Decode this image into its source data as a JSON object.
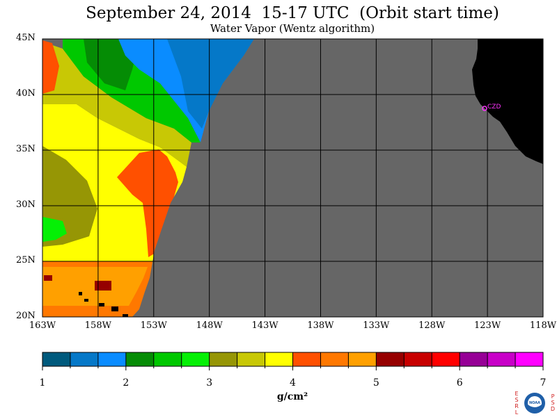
{
  "header": {
    "title": "September 24, 2014  15-17 UTC  (Orbit start time)",
    "subtitle": "Water Vapor (Wentz algorithm)"
  },
  "map": {
    "latitude_labels": [
      "45N",
      "40N",
      "35N",
      "30N",
      "25N",
      "20N"
    ],
    "longitude_labels": [
      "163W",
      "158W",
      "153W",
      "148W",
      "143W",
      "138W",
      "133W",
      "128W",
      "123W",
      "118W"
    ],
    "lon_range": [
      -163,
      -118
    ],
    "lat_range": [
      20,
      45
    ],
    "station_label": "CZD",
    "colors": {
      "no_data": "#666666",
      "land": "#000000",
      "grid": "#000000",
      "station": "#ff33ff"
    }
  },
  "colorbar": {
    "tick_labels": [
      "1",
      "2",
      "3",
      "4",
      "5",
      "6",
      "7"
    ],
    "unit": "g/cm²",
    "range": [
      1,
      7
    ],
    "colors": [
      "#005a7d",
      "#0578c8",
      "#0a8cff",
      "#058c05",
      "#00c800",
      "#05f005",
      "#969605",
      "#c8c805",
      "#ffff00",
      "#ff5000",
      "#ff7800",
      "#ffa000",
      "#960000",
      "#c80000",
      "#ff0000",
      "#960096",
      "#c800c8",
      "#ff00ff"
    ]
  },
  "logo": {
    "left_letters": [
      "E",
      "S",
      "R",
      "L"
    ],
    "right_letters": [
      "P",
      "S",
      "D"
    ],
    "text": "NOAA"
  }
}
